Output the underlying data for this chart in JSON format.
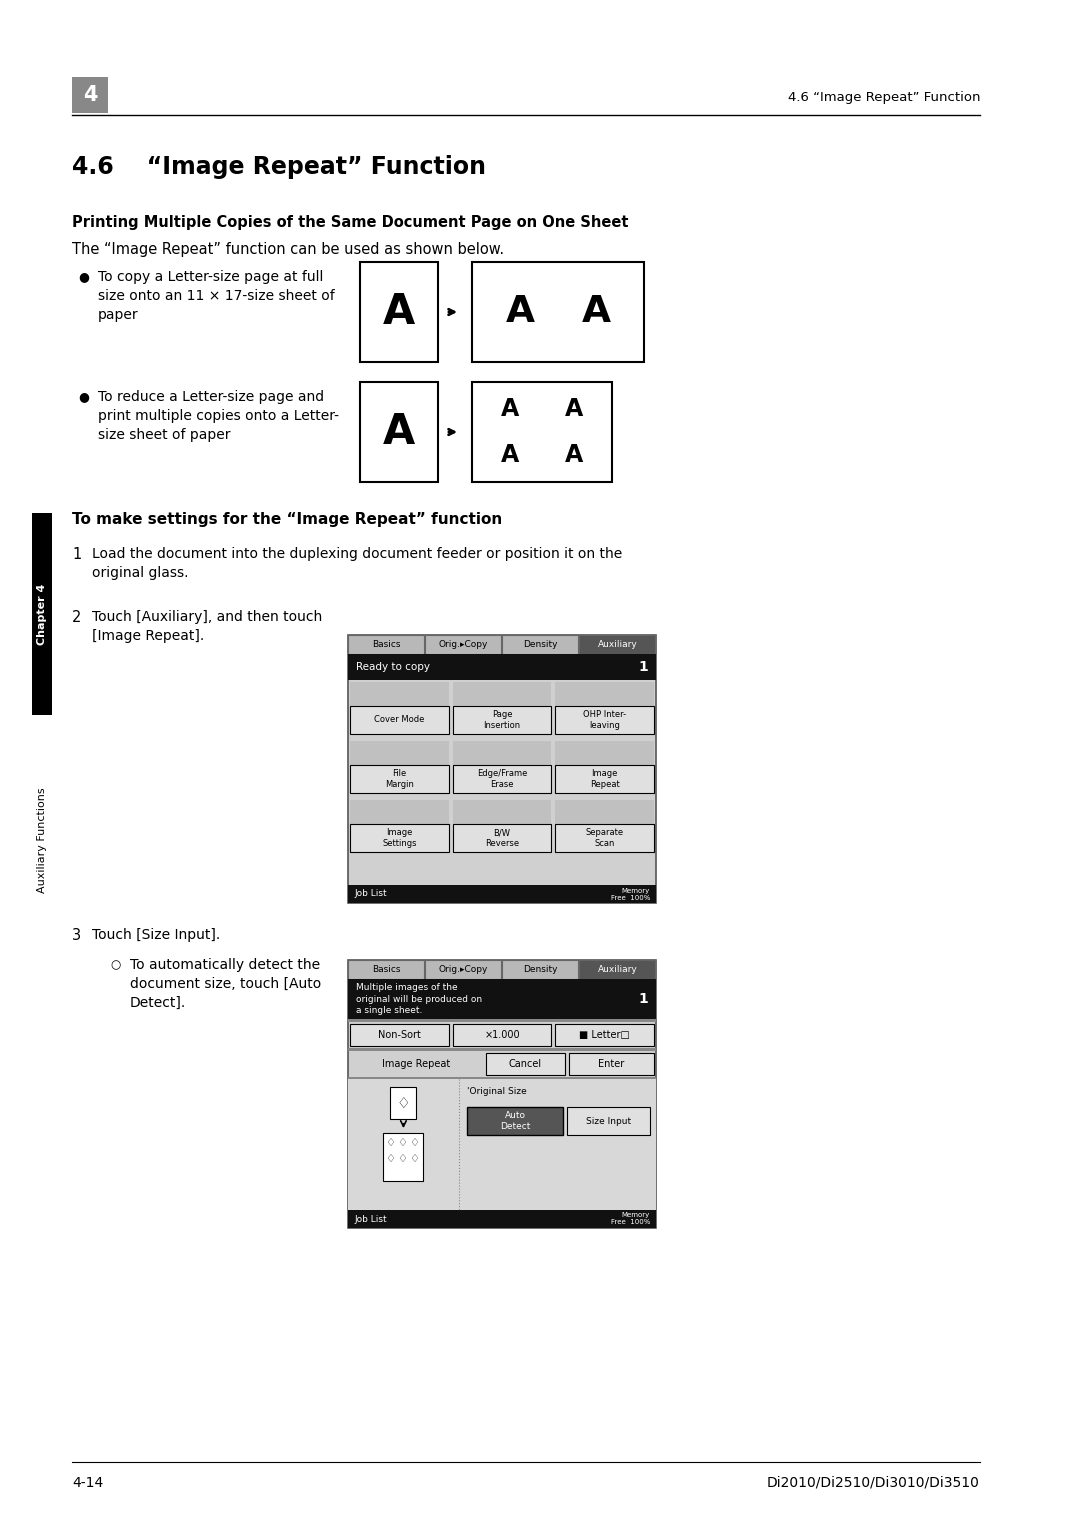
{
  "page_bg": "#ffffff",
  "chapter_num": "4",
  "header_right": "4.6 “Image Repeat” Function",
  "section_title": "4.6    “Image Repeat” Function",
  "subsection_title": "Printing Multiple Copies of the Same Document Page on One Sheet",
  "intro_text": "The “Image Repeat” function can be used as shown below.",
  "bullet1_text": "To copy a Letter-size page at full\nsize onto an 11 × 17-size sheet of\npaper",
  "bullet2_text": "To reduce a Letter-size page and\nprint multiple copies onto a Letter-\nsize sheet of paper",
  "make_settings_title": "To make settings for the “Image Repeat” function",
  "step1_text": "Load the document into the duplexing document feeder or position it on the\noriginal glass.",
  "step2_text": "Touch [Auxiliary], and then touch\n[Image Repeat].",
  "step3_text": "Touch [Size Input].",
  "step3_sub": "To automatically detect the\ndocument size, touch [Auto\nDetect].",
  "sidebar_chapter": "Chapter 4",
  "sidebar_aux": "Auxiliary Functions",
  "footer_left": "4-14",
  "footer_right": "Di2010/Di2510/Di3010/Di3510"
}
